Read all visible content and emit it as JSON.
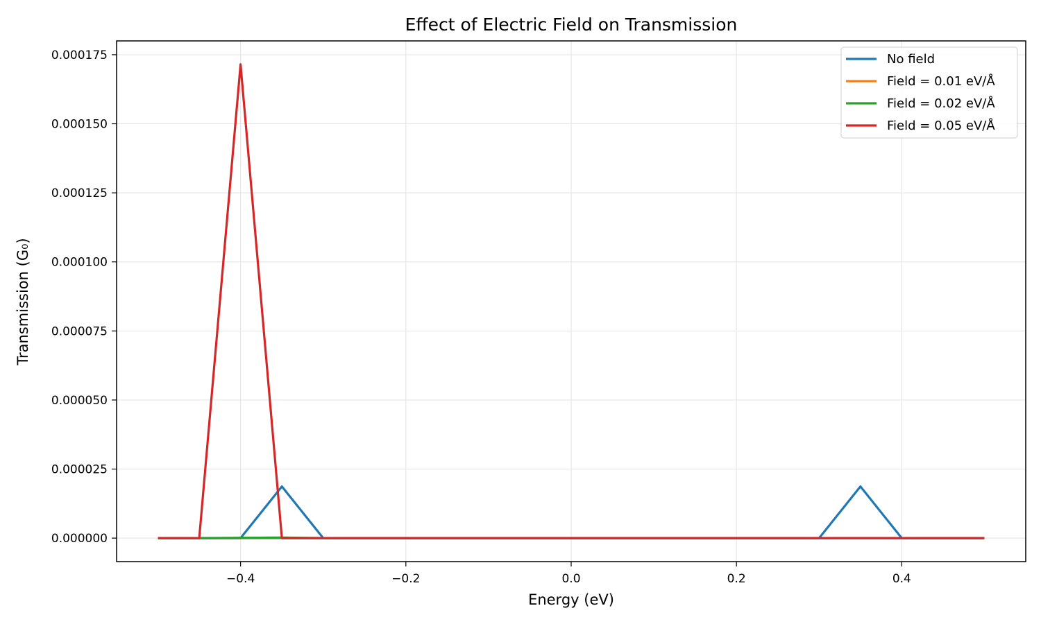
{
  "chart_data": {
    "type": "line",
    "title": "Effect of Electric Field on Transmission",
    "xlabel": "Energy (eV)",
    "ylabel": "Transmission (G₀)",
    "xlim": [
      -0.55,
      0.55
    ],
    "ylim": [
      -8.5e-06,
      0.00018
    ],
    "xticks": [
      -0.4,
      -0.2,
      0.0,
      0.2,
      0.4
    ],
    "xtick_labels": [
      "−0.4",
      "−0.2",
      "0.0",
      "0.2",
      "0.4"
    ],
    "yticks": [
      0,
      2.5e-05,
      5e-05,
      7.5e-05,
      0.0001,
      0.000125,
      0.00015,
      0.000175
    ],
    "ytick_labels": [
      "0.000000",
      "0.000025",
      "0.000050",
      "0.000075",
      "0.000100",
      "0.000125",
      "0.000150",
      "0.000175"
    ],
    "grid": true,
    "legend_position": "top-right",
    "series": [
      {
        "name": "No field",
        "color": "#1f77b4",
        "x": [
          -0.5,
          -0.45,
          -0.4,
          -0.35,
          -0.3,
          -0.25,
          -0.2,
          -0.15,
          -0.1,
          -0.05,
          0.0,
          0.05,
          0.1,
          0.15,
          0.2,
          0.25,
          0.3,
          0.35,
          0.4,
          0.45,
          0.5
        ],
        "y": [
          0,
          0,
          0,
          1.87e-05,
          0,
          0,
          0,
          0,
          0,
          0,
          0,
          0,
          0,
          0,
          0,
          0,
          0,
          1.87e-05,
          0,
          0,
          0
        ]
      },
      {
        "name": "Field = 0.01 eV/Å",
        "color": "#ff7f0e",
        "x": [
          -0.5,
          -0.45,
          -0.4,
          -0.35,
          -0.3,
          -0.25,
          -0.2,
          -0.15,
          -0.1,
          -0.05,
          0.0,
          0.05,
          0.1,
          0.15,
          0.2,
          0.25,
          0.3,
          0.35,
          0.4,
          0.45,
          0.5
        ],
        "y": [
          0,
          0,
          0,
          0,
          0,
          0,
          0,
          0,
          0,
          0,
          0,
          0,
          0,
          0,
          0,
          0,
          0,
          0,
          0,
          0,
          0
        ]
      },
      {
        "name": "Field = 0.02 eV/Å",
        "color": "#2ca02c",
        "x": [
          -0.5,
          -0.45,
          -0.4,
          -0.35,
          -0.3,
          -0.25,
          -0.2,
          -0.15,
          -0.1,
          -0.05,
          0.0,
          0.05,
          0.1,
          0.15,
          0.2,
          0.25,
          0.3,
          0.35,
          0.4,
          0.45,
          0.5
        ],
        "y": [
          0,
          0,
          1e-07,
          2e-07,
          0,
          0,
          0,
          0,
          0,
          0,
          0,
          0,
          0,
          0,
          0,
          0,
          0,
          0,
          0,
          0,
          0
        ]
      },
      {
        "name": "Field = 0.05 eV/Å",
        "color": "#d62728",
        "x": [
          -0.5,
          -0.45,
          -0.4,
          -0.35,
          -0.3,
          -0.25,
          -0.2,
          -0.15,
          -0.1,
          -0.05,
          0.0,
          0.05,
          0.1,
          0.15,
          0.2,
          0.25,
          0.3,
          0.35,
          0.4,
          0.45,
          0.5
        ],
        "y": [
          0,
          0,
          0.0001715,
          0,
          0,
          0,
          0,
          0,
          0,
          0,
          0,
          0,
          0,
          0,
          0,
          0,
          0,
          0,
          0,
          0,
          0
        ]
      }
    ]
  }
}
